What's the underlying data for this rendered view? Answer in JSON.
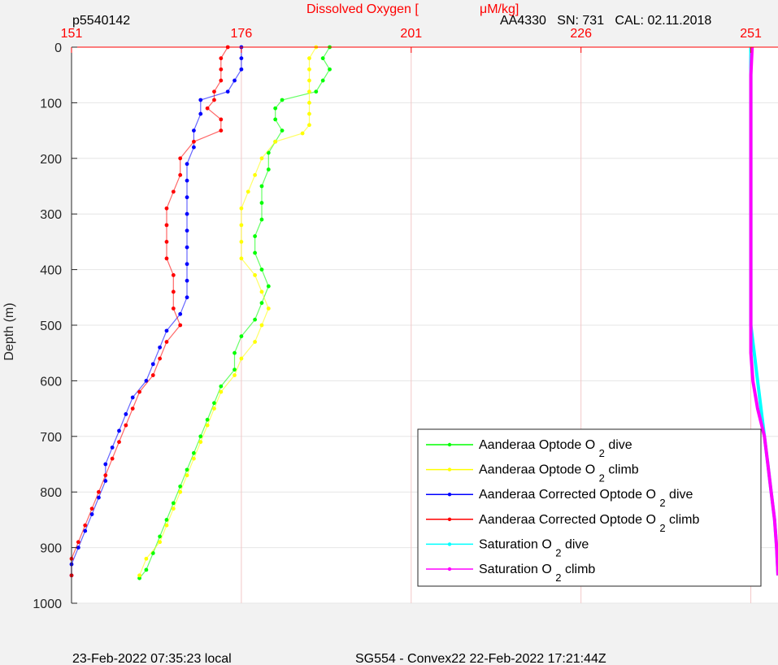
{
  "chart_data": {
    "type": "scatter",
    "title": "Dissolved Oxygen [ μM/kg]",
    "ylabel": "Depth (m)",
    "xlim": [
      151,
      255
    ],
    "ylim": [
      0,
      1000
    ],
    "y_reversed": true,
    "x_axis_position": "top",
    "xticks": [
      151,
      176,
      201,
      226,
      251
    ],
    "yticks": [
      0,
      100,
      200,
      300,
      400,
      500,
      600,
      700,
      800,
      900,
      1000
    ],
    "grid": true,
    "legend_position": "bottom-right",
    "series": [
      {
        "name": "Aanderaa Optode O 2 dive",
        "color": "#00ff00",
        "points": [
          [
            189,
            0
          ],
          [
            188,
            20
          ],
          [
            189,
            40
          ],
          [
            188,
            60
          ],
          [
            187,
            80
          ],
          [
            182,
            95
          ],
          [
            181,
            110
          ],
          [
            181,
            130
          ],
          [
            182,
            150
          ],
          [
            181,
            170
          ],
          [
            180,
            190
          ],
          [
            180,
            220
          ],
          [
            179,
            250
          ],
          [
            179,
            280
          ],
          [
            179,
            310
          ],
          [
            178,
            340
          ],
          [
            178,
            370
          ],
          [
            179,
            400
          ],
          [
            180,
            430
          ],
          [
            179,
            460
          ],
          [
            178,
            490
          ],
          [
            176,
            520
          ],
          [
            175,
            550
          ],
          [
            175,
            580
          ],
          [
            173,
            610
          ],
          [
            172,
            640
          ],
          [
            171,
            670
          ],
          [
            170,
            700
          ],
          [
            169,
            730
          ],
          [
            168,
            760
          ],
          [
            167,
            790
          ],
          [
            166,
            820
          ],
          [
            165,
            850
          ],
          [
            164,
            880
          ],
          [
            163,
            910
          ],
          [
            162,
            940
          ],
          [
            161,
            955
          ]
        ]
      },
      {
        "name": "Aanderaa Optode O 2 climb",
        "color": "#ffff00",
        "points": [
          [
            187,
            0
          ],
          [
            186,
            20
          ],
          [
            186,
            40
          ],
          [
            186,
            60
          ],
          [
            186,
            80
          ],
          [
            186,
            100
          ],
          [
            186,
            120
          ],
          [
            186,
            140
          ],
          [
            185,
            155
          ],
          [
            181,
            170
          ],
          [
            179,
            200
          ],
          [
            178,
            230
          ],
          [
            177,
            260
          ],
          [
            176,
            290
          ],
          [
            176,
            320
          ],
          [
            176,
            350
          ],
          [
            176,
            380
          ],
          [
            178,
            410
          ],
          [
            179,
            440
          ],
          [
            180,
            470
          ],
          [
            179,
            500
          ],
          [
            178,
            530
          ],
          [
            176,
            560
          ],
          [
            175,
            590
          ],
          [
            173,
            620
          ],
          [
            172,
            650
          ],
          [
            171,
            680
          ],
          [
            170,
            710
          ],
          [
            169,
            740
          ],
          [
            168,
            770
          ],
          [
            167,
            800
          ],
          [
            166,
            830
          ],
          [
            165,
            860
          ],
          [
            164,
            890
          ],
          [
            162,
            920
          ],
          [
            161,
            950
          ]
        ]
      },
      {
        "name": "Aanderaa Corrected Optode O 2 dive",
        "color": "#0000ff",
        "points": [
          [
            176,
            0
          ],
          [
            176,
            20
          ],
          [
            176,
            40
          ],
          [
            175,
            60
          ],
          [
            174,
            80
          ],
          [
            170,
            95
          ],
          [
            170,
            120
          ],
          [
            169,
            150
          ],
          [
            169,
            180
          ],
          [
            168,
            210
          ],
          [
            168,
            240
          ],
          [
            168,
            270
          ],
          [
            168,
            300
          ],
          [
            168,
            330
          ],
          [
            168,
            360
          ],
          [
            168,
            390
          ],
          [
            168,
            420
          ],
          [
            168,
            450
          ],
          [
            167,
            480
          ],
          [
            165,
            510
          ],
          [
            164,
            540
          ],
          [
            163,
            570
          ],
          [
            162,
            600
          ],
          [
            160,
            630
          ],
          [
            159,
            660
          ],
          [
            158,
            690
          ],
          [
            157,
            720
          ],
          [
            156,
            750
          ],
          [
            156,
            780
          ],
          [
            155,
            810
          ],
          [
            154,
            840
          ],
          [
            153,
            870
          ],
          [
            152,
            900
          ],
          [
            151,
            930
          ],
          [
            151,
            950
          ]
        ]
      },
      {
        "name": "Aanderaa Corrected Optode O 2 climb",
        "color": "#ff0000",
        "points": [
          [
            174,
            0
          ],
          [
            173,
            20
          ],
          [
            173,
            40
          ],
          [
            173,
            60
          ],
          [
            172,
            80
          ],
          [
            172,
            95
          ],
          [
            171,
            110
          ],
          [
            173,
            130
          ],
          [
            173,
            150
          ],
          [
            169,
            170
          ],
          [
            167,
            200
          ],
          [
            167,
            230
          ],
          [
            166,
            260
          ],
          [
            165,
            290
          ],
          [
            165,
            320
          ],
          [
            165,
            350
          ],
          [
            165,
            380
          ],
          [
            166,
            410
          ],
          [
            166,
            440
          ],
          [
            166,
            470
          ],
          [
            167,
            500
          ],
          [
            165,
            530
          ],
          [
            164,
            560
          ],
          [
            163,
            590
          ],
          [
            161,
            620
          ],
          [
            160,
            650
          ],
          [
            159,
            680
          ],
          [
            158,
            710
          ],
          [
            157,
            740
          ],
          [
            156,
            770
          ],
          [
            155,
            800
          ],
          [
            154,
            830
          ],
          [
            153,
            860
          ],
          [
            152,
            890
          ],
          [
            151,
            920
          ],
          [
            151,
            950
          ]
        ]
      },
      {
        "name": "Saturation O 2 dive",
        "color": "#00ffff",
        "points": [
          [
            251,
            0
          ],
          [
            251,
            50
          ],
          [
            251,
            100
          ],
          [
            251,
            150
          ],
          [
            251,
            200
          ],
          [
            251,
            250
          ],
          [
            251,
            300
          ],
          [
            251,
            350
          ],
          [
            251,
            400
          ],
          [
            251,
            450
          ],
          [
            251,
            500
          ],
          [
            251.5,
            550
          ],
          [
            252,
            600
          ],
          [
            252.5,
            650
          ],
          [
            253,
            700
          ],
          [
            253.5,
            750
          ],
          [
            254,
            800
          ],
          [
            254.5,
            850
          ],
          [
            254.8,
            900
          ],
          [
            255,
            950
          ]
        ]
      },
      {
        "name": "Saturation O 2 climb",
        "color": "#ff00ff",
        "points": [
          [
            251.2,
            0
          ],
          [
            251,
            50
          ],
          [
            251,
            100
          ],
          [
            251,
            150
          ],
          [
            251,
            200
          ],
          [
            251,
            250
          ],
          [
            251,
            300
          ],
          [
            251,
            350
          ],
          [
            251,
            400
          ],
          [
            251,
            450
          ],
          [
            251,
            500
          ],
          [
            251,
            550
          ],
          [
            251.3,
            600
          ],
          [
            252,
            650
          ],
          [
            253,
            700
          ],
          [
            253.5,
            750
          ],
          [
            254,
            800
          ],
          [
            254.5,
            850
          ],
          [
            254.8,
            900
          ],
          [
            255,
            950
          ]
        ]
      }
    ],
    "legend": [
      {
        "text": "Aanderaa Optode O",
        "sub": "2",
        "suffix": "dive"
      },
      {
        "text": "Aanderaa Optode O",
        "sub": "2",
        "suffix": "climb"
      },
      {
        "text": "Aanderaa Corrected Optode O",
        "sub": "2",
        "suffix": "dive"
      },
      {
        "text": "Aanderaa Corrected Optode O",
        "sub": "2",
        "suffix": "climb"
      },
      {
        "text": "Saturation O",
        "sub": "2",
        "suffix": "dive"
      },
      {
        "text": "Saturation O",
        "sub": "2",
        "suffix": "climb"
      }
    ]
  },
  "header": {
    "profile_id": "p5540142",
    "title_prefix": "Dissolved Oxygen [",
    "title_unit": "μM/kg]",
    "sensor_info": "AA4330   SN: 731   CAL: 02.11.2018"
  },
  "footer": {
    "local_time": "23-Feb-2022 07:35:23 local",
    "mission": "SG554 - Convex22 22-Feb-2022 17:21:44Z"
  },
  "colors": {
    "background": "#f2f2f2",
    "plot_bg": "#ffffff",
    "accent": "#ff0000",
    "grid": "#e6e6e6",
    "axis": "#262626"
  }
}
